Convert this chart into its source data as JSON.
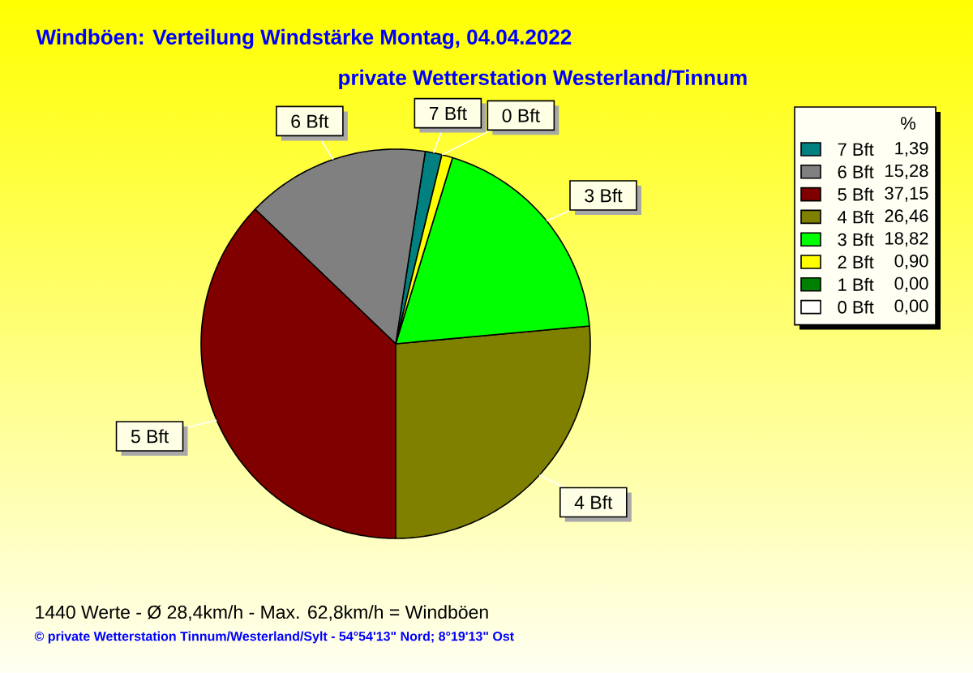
{
  "chart_data": {
    "type": "pie",
    "title": "Windböen: Verteilung Windstärke Montag, 04.04.2022",
    "subtitle": "private Wetterstation Westerland/Tinnum",
    "categories": [
      "7 Bft",
      "6 Bft",
      "5 Bft",
      "4 Bft",
      "3 Bft",
      "2 Bft",
      "1 Bft",
      "0 Bft"
    ],
    "values": [
      1.39,
      15.28,
      37.15,
      26.46,
      18.82,
      0.9,
      0.0,
      0.0
    ],
    "value_labels": [
      "1,39",
      "15,28",
      "37,15",
      "26,46",
      "18,82",
      "0,90",
      "0,00",
      "0,00"
    ],
    "colors": [
      "#008080",
      "#808080",
      "#800000",
      "#808000",
      "#00ff00",
      "#ffff00",
      "#008000",
      "#ffffff"
    ],
    "legend": "top right",
    "legend_title": "%",
    "annotations": [
      "1440 Werte - Ø 28,4km/h - Max. 62,8km/h = Windböen",
      "© private Wetterstation Tinnum/Westerland/Sylt - 54°54'13\" Nord; 8°19'13\" Ost"
    ]
  }
}
